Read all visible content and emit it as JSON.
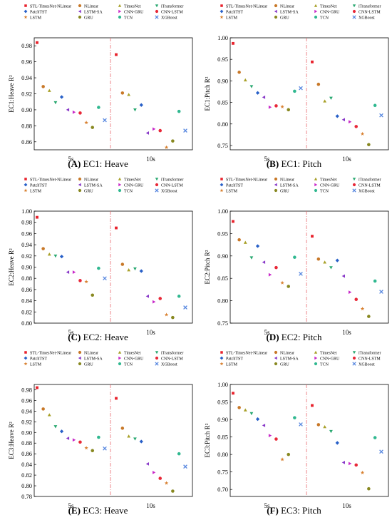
{
  "series_styles": [
    {
      "name": "STL-TimesNet-NLinear",
      "color": "#e8222c",
      "marker": "square"
    },
    {
      "name": "NLinear",
      "color": "#c87828",
      "marker": "circle"
    },
    {
      "name": "TimesNet",
      "color": "#a8a028",
      "marker": "triangle-up"
    },
    {
      "name": "iTransformer",
      "color": "#28a870",
      "marker": "triangle-down"
    },
    {
      "name": "PatchTST",
      "color": "#2860c8",
      "marker": "diamond"
    },
    {
      "name": "LSTM-SA",
      "color": "#8838c8",
      "marker": "triangle-left"
    },
    {
      "name": "CNN-GRU",
      "color": "#c828c8",
      "marker": "triangle-right"
    },
    {
      "name": "CNN-LSTM",
      "color": "#e82838",
      "marker": "circle"
    },
    {
      "name": "LSTM",
      "color": "#d88030",
      "marker": "star"
    },
    {
      "name": "GRU",
      "color": "#888820",
      "marker": "circle"
    },
    {
      "name": "TCN",
      "color": "#30b890",
      "marker": "circle"
    },
    {
      "name": "XGBoost",
      "color": "#5888e0",
      "marker": "x"
    }
  ],
  "chart_data": [
    {
      "type": "scatter",
      "ylabel": "EC1:Heave  R²",
      "caption_letter": "(A)",
      "caption_text": "EC1: Heave",
      "categories": [
        "5s",
        "10s"
      ],
      "ylim": [
        0.85,
        0.99
      ],
      "yticks": [
        0.86,
        0.88,
        0.9,
        0.92,
        0.94,
        0.96,
        0.98
      ],
      "tick_format": "0.00",
      "values": {
        "5s": [
          0.984,
          0.929,
          0.924,
          0.909,
          0.916,
          0.9,
          0.897,
          0.896,
          0.884,
          0.878,
          0.903,
          0.887
        ],
        "10s": [
          0.969,
          0.921,
          0.919,
          0.9,
          0.906,
          0.871,
          0.876,
          0.874,
          0.853,
          0.861,
          0.898,
          0.874
        ]
      }
    },
    {
      "type": "scatter",
      "ylabel": "EC1:Pitch  R²",
      "caption_letter": "(B)",
      "caption_text": "EC1: Pitch",
      "categories": [
        "5s",
        "10s"
      ],
      "ylim": [
        0.74,
        1.0
      ],
      "yticks": [
        0.75,
        0.8,
        0.85,
        0.9,
        0.95,
        1.0
      ],
      "tick_format": "0.00",
      "values": {
        "5s": [
          0.987,
          0.92,
          0.902,
          0.887,
          0.872,
          0.862,
          0.839,
          0.842,
          0.84,
          0.833,
          0.876,
          0.883
        ],
        "10s": [
          0.944,
          0.892,
          0.853,
          0.86,
          0.818,
          0.81,
          0.805,
          0.794,
          0.777,
          0.752,
          0.843,
          0.82
        ]
      }
    },
    {
      "type": "scatter",
      "ylabel": "EC2:Heave  R²",
      "caption_letter": "(C)",
      "caption_text": "EC2: Heave",
      "categories": [
        "5s",
        "10s"
      ],
      "ylim": [
        0.8,
        1.0
      ],
      "yticks": [
        0.8,
        0.82,
        0.84,
        0.86,
        0.88,
        0.9,
        0.92,
        0.94,
        0.96,
        0.98,
        1.0
      ],
      "tick_format": "0.00",
      "values": {
        "5s": [
          0.989,
          0.933,
          0.923,
          0.92,
          0.919,
          0.891,
          0.891,
          0.876,
          0.874,
          0.85,
          0.898,
          0.88
        ],
        "10s": [
          0.97,
          0.905,
          0.895,
          0.897,
          0.893,
          0.848,
          0.838,
          0.844,
          0.815,
          0.81,
          0.848,
          0.828
        ]
      }
    },
    {
      "type": "scatter",
      "ylabel": "EC2:Pitch  R²",
      "caption_letter": "(D)",
      "caption_text": "EC2: Pitch",
      "categories": [
        "5s",
        "10s"
      ],
      "ylim": [
        0.75,
        1.0
      ],
      "yticks": [
        0.75,
        0.8,
        0.85,
        0.9,
        0.95,
        1.0
      ],
      "tick_format": "0.00",
      "values": {
        "5s": [
          0.977,
          0.936,
          0.93,
          0.896,
          0.922,
          0.886,
          0.858,
          0.874,
          0.84,
          0.832,
          0.897,
          0.86
        ],
        "10s": [
          0.944,
          0.893,
          0.886,
          0.874,
          0.89,
          0.855,
          0.819,
          0.803,
          0.782,
          0.765,
          0.844,
          0.82
        ]
      }
    },
    {
      "type": "scatter",
      "ylabel": "EC3:Heave  R²",
      "caption_letter": "(E)",
      "caption_text": "EC3: Heave",
      "categories": [
        "5s",
        "10s"
      ],
      "ylim": [
        0.78,
        0.99
      ],
      "yticks": [
        0.78,
        0.8,
        0.82,
        0.84,
        0.86,
        0.88,
        0.9,
        0.92,
        0.94,
        0.96,
        0.98
      ],
      "tick_format": "0.00",
      "values": {
        "5s": [
          0.984,
          0.944,
          0.933,
          0.911,
          0.902,
          0.889,
          0.886,
          0.882,
          0.871,
          0.866,
          0.891,
          0.87
        ],
        "10s": [
          0.964,
          0.908,
          0.893,
          0.888,
          0.883,
          0.841,
          0.825,
          0.814,
          0.805,
          0.79,
          0.86,
          0.836
        ]
      }
    },
    {
      "type": "scatter",
      "ylabel": "EC3:Pitch  R²",
      "caption_letter": "(F)",
      "caption_text": "EC3: Pitch",
      "categories": [
        "5s",
        "10s"
      ],
      "ylim": [
        0.68,
        1.0
      ],
      "yticks": [
        0.7,
        0.75,
        0.8,
        0.85,
        0.9,
        0.95,
        1.0
      ],
      "tick_format": "0.00",
      "values": {
        "5s": [
          0.975,
          0.934,
          0.927,
          0.917,
          0.901,
          0.883,
          0.854,
          0.844,
          0.786,
          0.8,
          0.905,
          0.886
        ],
        "10s": [
          0.94,
          0.885,
          0.879,
          0.866,
          0.833,
          0.777,
          0.774,
          0.77,
          0.748,
          0.702,
          0.848,
          0.808
        ]
      }
    }
  ]
}
